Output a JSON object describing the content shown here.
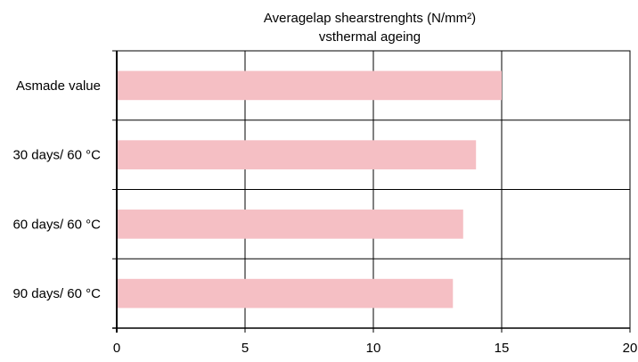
{
  "chart_data": {
    "type": "bar",
    "orientation": "horizontal",
    "title": "Averagelap shearstrenghts (N/mm²)",
    "subtitle": "vsthermal ageing",
    "categories": [
      "Asmade value",
      "30 days/ 60 °C",
      "60 days/ 60 °C",
      "90 days/ 60 °C"
    ],
    "values": [
      15.0,
      14.0,
      13.5,
      13.1
    ],
    "xlim": [
      0,
      20
    ],
    "xticks": [
      "0",
      "5",
      "10",
      "15",
      "20"
    ],
    "xlabel": "",
    "ylabel": "",
    "grid": true,
    "bar_color": "#f5bfc4"
  }
}
